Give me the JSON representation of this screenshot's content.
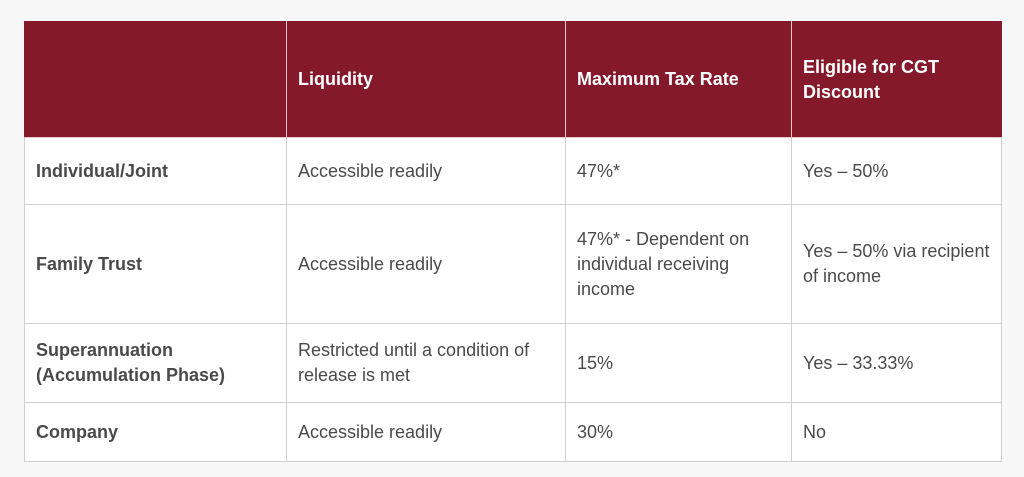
{
  "table": {
    "headers": [
      "",
      "Liquidity",
      "Maximum Tax Rate",
      "Eligible for CGT Discount"
    ],
    "rows": [
      {
        "entity": "Individual/Joint",
        "liquidity": "Accessible readily",
        "max_tax_rate": "47%*",
        "cgt_discount": "Yes – 50%"
      },
      {
        "entity": "Family Trust",
        "liquidity": "Accessible readily",
        "max_tax_rate": "47%* - Dependent on individual receiving income",
        "cgt_discount": "Yes – 50% via recipient of income"
      },
      {
        "entity": "Superannuation (Accumulation Phase)",
        "liquidity": "Restricted until a condition of release is met",
        "max_tax_rate": "15%",
        "cgt_discount": "Yes – 33.33%"
      },
      {
        "entity": "Company",
        "liquidity": "Accessible readily",
        "max_tax_rate": "30%",
        "cgt_discount": "No"
      }
    ]
  },
  "colors": {
    "header_background": "#84192b",
    "header_text": "#ffffff",
    "body_text": "#4a4a4a",
    "grid_lines": "#d0d0d0"
  }
}
